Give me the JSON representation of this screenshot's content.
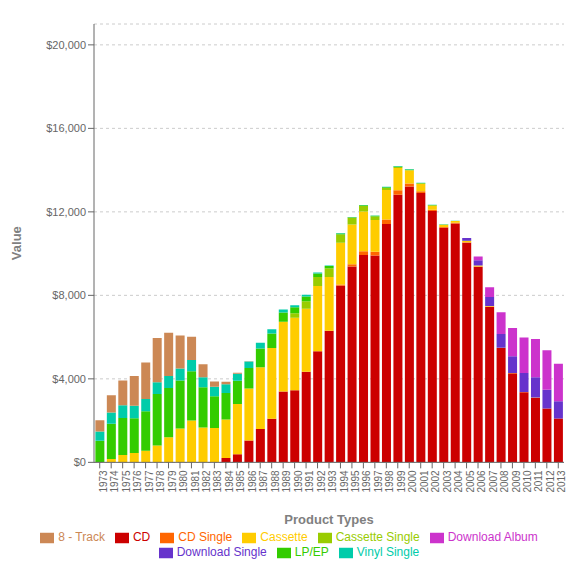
{
  "chart_data": {
    "type": "bar",
    "stacked": true,
    "grid": true,
    "legend": "bottom",
    "xlabel": "Product Types",
    "ylabel": "Value",
    "categories": [
      "1973",
      "1974",
      "1975",
      "1976",
      "1977",
      "1978",
      "1979",
      "1980",
      "1981",
      "1982",
      "1983",
      "1984",
      "1985",
      "1986",
      "1987",
      "1988",
      "1989",
      "1990",
      "1991",
      "1992",
      "1993",
      "1994",
      "1995",
      "1996",
      "1997",
      "1998",
      "1999",
      "2000",
      "2001",
      "2002",
      "2003",
      "2004",
      "2005",
      "2006",
      "2007",
      "2008",
      "2009",
      "2010",
      "2011",
      "2012",
      "2013"
    ],
    "ylim": [
      0,
      21000
    ],
    "yticks": [
      {
        "value": 0,
        "label": "$0"
      },
      {
        "value": 4000,
        "label": "$4,000"
      },
      {
        "value": 8000,
        "label": "$8,000"
      },
      {
        "value": 12000,
        "label": "$12,000"
      },
      {
        "value": 16000,
        "label": "$16,000"
      },
      {
        "value": 20000,
        "label": "$20,000"
      }
    ],
    "series": [
      {
        "name": "CD",
        "color": "#cc0000",
        "values": [
          0,
          0,
          0,
          0,
          0,
          0,
          0,
          0,
          0,
          0,
          17,
          205,
          389,
          1042,
          1594,
          2090,
          3395,
          3452,
          4338,
          5327,
          6299,
          8465,
          9378,
          9934,
          9915,
          11416,
          12816,
          13214,
          12909,
          12044,
          11233,
          11447,
          10520,
          9372,
          7452,
          5472,
          4271,
          3364,
          3099,
          2580,
          2100
        ]
      },
      {
        "name": "CD Single",
        "color": "#ff6600",
        "values": [
          0,
          0,
          0,
          0,
          0,
          0,
          0,
          0,
          0,
          0,
          0,
          0,
          0,
          0,
          0,
          0,
          0,
          0,
          0,
          0,
          0,
          56,
          111,
          184,
          172,
          214,
          222,
          142,
          79,
          52,
          36,
          28,
          21,
          13,
          10,
          5,
          3,
          2,
          0,
          0,
          0
        ]
      },
      {
        "name": "Cassette",
        "color": "#ffcc00",
        "values": [
          15,
          155,
          353,
          451,
          553,
          804,
          1204,
          1626,
          2000,
          1667,
          1626,
          1852,
          2412,
          2495,
          2957,
          3386,
          3346,
          3472,
          3019,
          3116,
          2576,
          2004,
          1906,
          1905,
          1522,
          1420,
          1061,
          626,
          363,
          209,
          114,
          83,
          66,
          40,
          27,
          15,
          9,
          6,
          4,
          2,
          1
        ]
      },
      {
        "name": "Cassette Single",
        "color": "#99cc00",
        "values": [
          0,
          0,
          0,
          0,
          0,
          0,
          0,
          0,
          0,
          0,
          0,
          0,
          0,
          0,
          0,
          0,
          0,
          223,
          360,
          442,
          420,
          385,
          327,
          260,
          172,
          96,
          48,
          18,
          8,
          4,
          2,
          2,
          1,
          1,
          0,
          0,
          0,
          0,
          0,
          0,
          0
        ]
      },
      {
        "name": "LP/EP",
        "color": "#33cc00",
        "values": [
          1017,
          1690,
          1769,
          1660,
          1900,
          2471,
          2361,
          2290,
          2364,
          1926,
          1521,
          1263,
          1109,
          984,
          903,
          697,
          439,
          286,
          230,
          166,
          115,
          58,
          25,
          36,
          32,
          34,
          26,
          28,
          20,
          14,
          11,
          6,
          3,
          2,
          1,
          0,
          0,
          0,
          0,
          0,
          0
        ]
      },
      {
        "name": "Vinyl Single",
        "color": "#00ccaa",
        "values": [
          450,
          539,
          615,
          599,
          580,
          563,
          572,
          576,
          544,
          486,
          463,
          426,
          335,
          313,
          272,
          199,
          147,
          94,
          77,
          49,
          26,
          18,
          10,
          11,
          16,
          26,
          22,
          28,
          18,
          15,
          11,
          6,
          3,
          2,
          1,
          0,
          0,
          0,
          0,
          0,
          0
        ]
      },
      {
        "name": "Download Single",
        "color": "#6633cc",
        "values": [
          0,
          0,
          0,
          0,
          0,
          0,
          0,
          0,
          0,
          0,
          0,
          0,
          0,
          0,
          0,
          0,
          0,
          0,
          0,
          0,
          0,
          0,
          0,
          0,
          0,
          0,
          0,
          0,
          0,
          0,
          0,
          0,
          139,
          256,
          427,
          656,
          794,
          910,
          969,
          893,
          831
        ]
      },
      {
        "name": "Download Album",
        "color": "#cc33cc",
        "values": [
          0,
          0,
          0,
          0,
          0,
          0,
          0,
          0,
          0,
          0,
          0,
          0,
          0,
          0,
          0,
          0,
          0,
          0,
          0,
          0,
          0,
          0,
          0,
          0,
          0,
          0,
          0,
          0,
          0,
          0,
          0,
          0,
          0,
          179,
          474,
          1038,
          1360,
          1697,
          1834,
          1895,
          1791
        ]
      },
      {
        "name": "8 - Track",
        "color": "#cc8855",
        "values": [
          529,
          829,
          1189,
          1429,
          1755,
          2124,
          2076,
          1586,
          1104,
          617,
          246,
          118,
          43,
          10,
          0,
          0,
          0,
          0,
          0,
          0,
          0,
          0,
          0,
          0,
          0,
          0,
          0,
          0,
          0,
          0,
          0,
          0,
          0,
          0,
          0,
          0,
          0,
          0,
          0,
          0,
          0
        ]
      }
    ]
  }
}
